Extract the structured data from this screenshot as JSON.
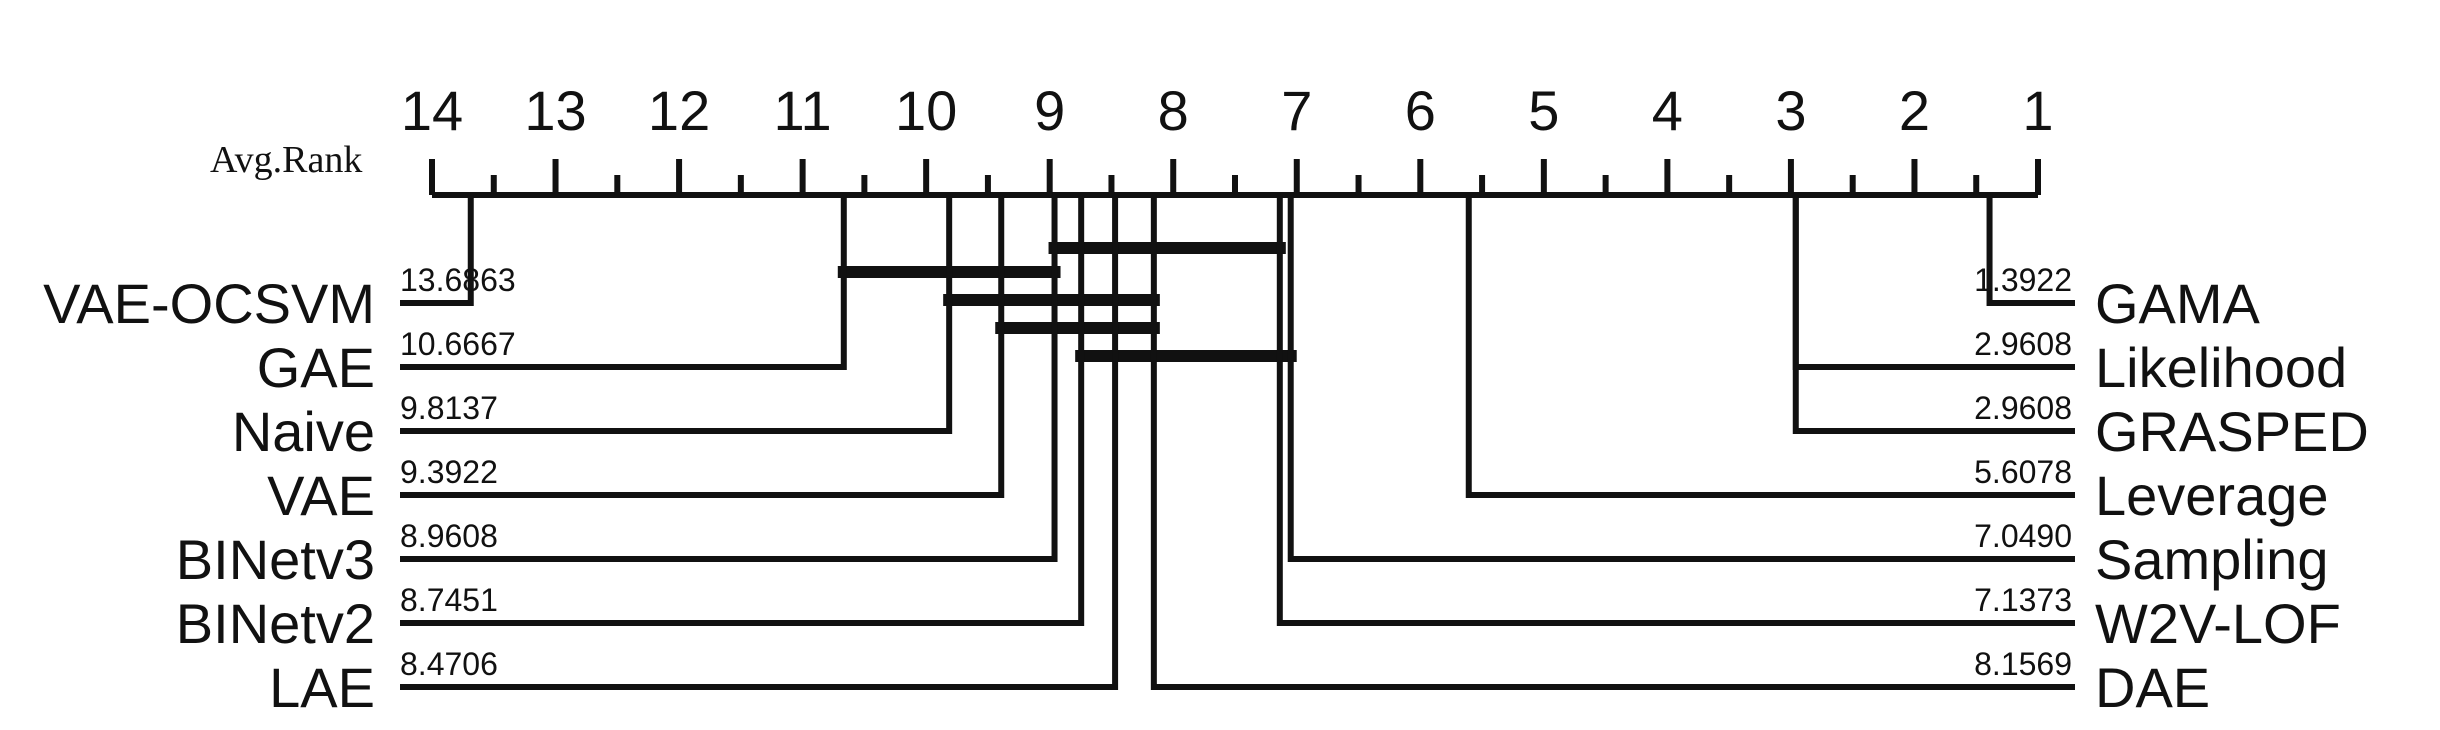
{
  "chart_data": {
    "type": "critical-difference-diagram",
    "axis_title": "Avg.Rank",
    "axis_range": [
      14,
      1
    ],
    "ticks": [
      "14",
      "13",
      "12",
      "11",
      "10",
      "9",
      "8",
      "7",
      "6",
      "5",
      "4",
      "3",
      "2",
      "1"
    ],
    "left_methods": [
      {
        "name": "VAE-OCSVM",
        "rank": 13.6863,
        "rank_label": "13.6863"
      },
      {
        "name": "GAE",
        "rank": 10.6667,
        "rank_label": "10.6667"
      },
      {
        "name": "Naive",
        "rank": 9.8137,
        "rank_label": "9.8137"
      },
      {
        "name": "VAE",
        "rank": 9.3922,
        "rank_label": "9.3922"
      },
      {
        "name": "BINetv3",
        "rank": 8.9608,
        "rank_label": "8.9608"
      },
      {
        "name": "BINetv2",
        "rank": 8.7451,
        "rank_label": "8.7451"
      },
      {
        "name": "LAE",
        "rank": 8.4706,
        "rank_label": "8.4706"
      }
    ],
    "right_methods": [
      {
        "name": "GAMA",
        "rank": 1.3922,
        "rank_label": "1.3922"
      },
      {
        "name": "Likelihood",
        "rank": 2.9608,
        "rank_label": "2.9608"
      },
      {
        "name": "GRASPED",
        "rank": 2.9608,
        "rank_label": "2.9608"
      },
      {
        "name": "Leverage",
        "rank": 5.6078,
        "rank_label": "5.6078"
      },
      {
        "name": "Sampling",
        "rank": 7.049,
        "rank_label": "7.0490"
      },
      {
        "name": "W2V-LOF",
        "rank": 7.1373,
        "rank_label": "7.1373"
      },
      {
        "name": "DAE",
        "rank": 8.1569,
        "rank_label": "8.1569"
      }
    ],
    "cliques": [
      {
        "from": 8.9608,
        "to": 7.1373
      },
      {
        "from": 10.6667,
        "to": 8.9608
      },
      {
        "from": 9.8137,
        "to": 8.1569
      },
      {
        "from": 9.3922,
        "to": 8.1569
      },
      {
        "from": 8.7451,
        "to": 7.049
      }
    ]
  }
}
